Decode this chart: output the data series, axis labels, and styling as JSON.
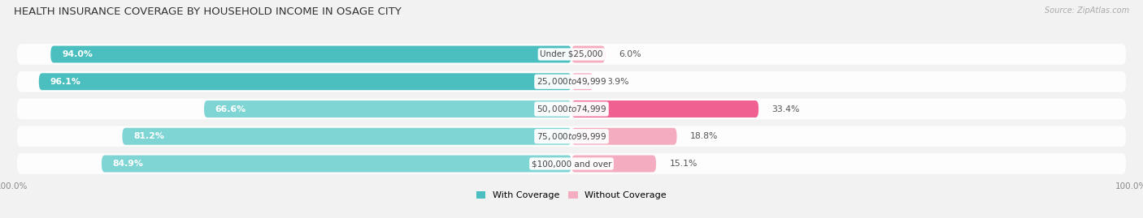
{
  "title": "HEALTH INSURANCE COVERAGE BY HOUSEHOLD INCOME IN OSAGE CITY",
  "source": "Source: ZipAtlas.com",
  "categories": [
    "Under $25,000",
    "$25,000 to $49,999",
    "$50,000 to $74,999",
    "$75,000 to $99,999",
    "$100,000 and over"
  ],
  "with_coverage": [
    94.0,
    96.1,
    66.6,
    81.2,
    84.9
  ],
  "without_coverage": [
    6.0,
    3.9,
    33.4,
    18.8,
    15.1
  ],
  "color_with": "#4bbfbf",
  "color_with_light": "#7fd4d4",
  "color_without_light": "#f4adc0",
  "color_without_dark": "#f06090",
  "bg_color": "#f2f2f2",
  "bar_bg": "#e8e8ec",
  "title_fontsize": 9.5,
  "label_fontsize": 7.8,
  "cat_fontsize": 7.5,
  "legend_fontsize": 8,
  "axis_label_fontsize": 7.5
}
